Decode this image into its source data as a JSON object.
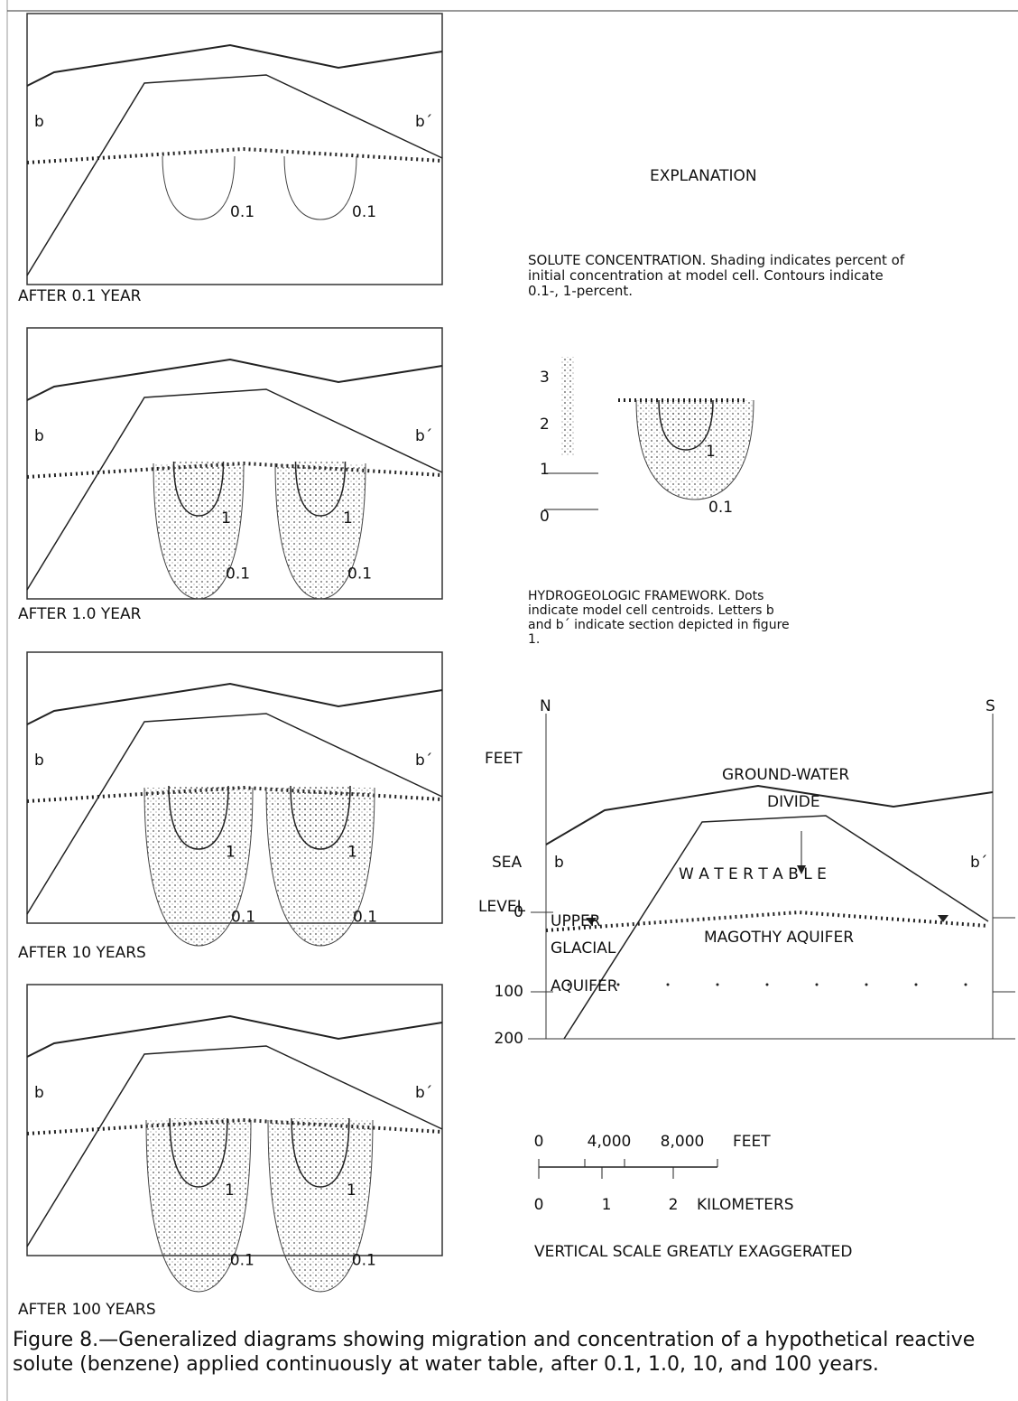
{
  "panels": [
    {
      "caption": "AFTER 0.1 YEAR",
      "left_label": "b",
      "right_label": "b´",
      "contour_labels": [
        "0.1",
        "0.1"
      ]
    },
    {
      "caption": "AFTER 1.0 YEAR",
      "left_label": "b",
      "right_label": "b´",
      "contour_labels": [
        "1",
        "1",
        "0.1",
        "0.1"
      ]
    },
    {
      "caption": "AFTER 10 YEARS",
      "left_label": "b",
      "right_label": "b´",
      "contour_labels": [
        "1",
        "1",
        "0.1",
        "0.1"
      ]
    },
    {
      "caption": "AFTER 100 YEARS",
      "left_label": "b",
      "right_label": "b´",
      "contour_labels": [
        "1",
        "1",
        "0.1",
        "0.1"
      ]
    }
  ],
  "explanation": {
    "title": "EXPLANATION",
    "solute": {
      "text": "SOLUTE CONCENTRATION. Shading indicates percent of initial concentration at model cell. Contours indicate 0.1-, 1-percent.",
      "scale_labels": [
        "3",
        "2",
        "1",
        "0"
      ],
      "contour_labels": [
        "1",
        "0.1"
      ]
    },
    "framework": {
      "text": "HYDROGEOLOGIC FRAMEWORK. Dots indicate model cell centroids. Letters b and b´ indicate section depicted in figure 1.",
      "section": {
        "north": "N",
        "south": "S",
        "feet": "FEET",
        "divide_1": "GROUND-WATER",
        "divide_2": "DIVIDE",
        "sea": "SEA",
        "level": "LEVEL",
        "depths": [
          "0",
          "100",
          "200"
        ],
        "left_label": "b",
        "right_label": "b´",
        "water_table": "W A T E R   T A B L E",
        "upper_1": "UPPER",
        "upper_2": "GLACIAL",
        "upper_3": "AQUIFER",
        "magothy": "MAGOTHY AQUIFER"
      },
      "scale": {
        "feet_labels": [
          "0",
          "4,000",
          "8,000"
        ],
        "feet_unit": "FEET",
        "km_labels": [
          "0",
          "1",
          "2"
        ],
        "km_unit": "KILOMETERS",
        "note": "VERTICAL SCALE GREATLY EXAGGERATED"
      }
    }
  },
  "caption": "Figure 8.—Generalized diagrams showing migration and concentration of a hypothetical reactive solute (benzene) applied continuously at water table, after 0.1, 1.0, 10, and 100 years."
}
